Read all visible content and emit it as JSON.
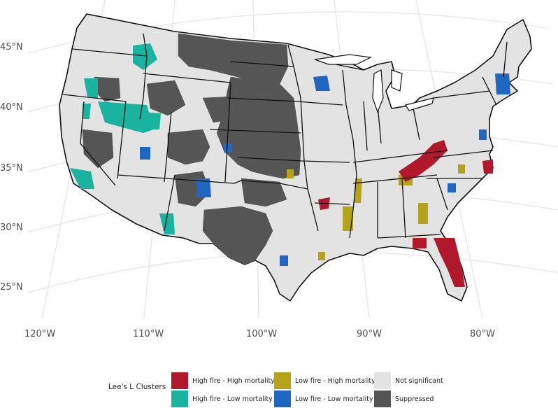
{
  "axes": {
    "latitudes": [
      "45°N",
      "40°N",
      "35°N",
      "30°N",
      "25°N"
    ],
    "longitudes": [
      "120°W",
      "110°W",
      "100°W",
      "90°W",
      "80°W"
    ]
  },
  "legend": {
    "title": "Lee's L Clusters",
    "items": [
      {
        "label": "High fire - High mortality",
        "color": "#b2182b",
        "name": "legend-item-high-high"
      },
      {
        "label": "High fire - Low mortality",
        "color": "#1ab39f",
        "name": "legend-item-high-low"
      },
      {
        "label": "Low fire - High mortality",
        "color": "#b5a31c",
        "name": "legend-item-low-high"
      },
      {
        "label": "Low fire - Low mortality",
        "color": "#2166c1",
        "name": "legend-item-low-low"
      },
      {
        "label": "Not significant",
        "color": "#e3e3e3",
        "name": "legend-item-not-significant"
      },
      {
        "label": "Suppressed",
        "color": "#555555",
        "name": "legend-item-suppressed"
      }
    ]
  },
  "colors": {
    "background": "#ffffff",
    "graticule": "#e6e6e6",
    "state_border": "#111111",
    "county_border": "#ffffff"
  }
}
